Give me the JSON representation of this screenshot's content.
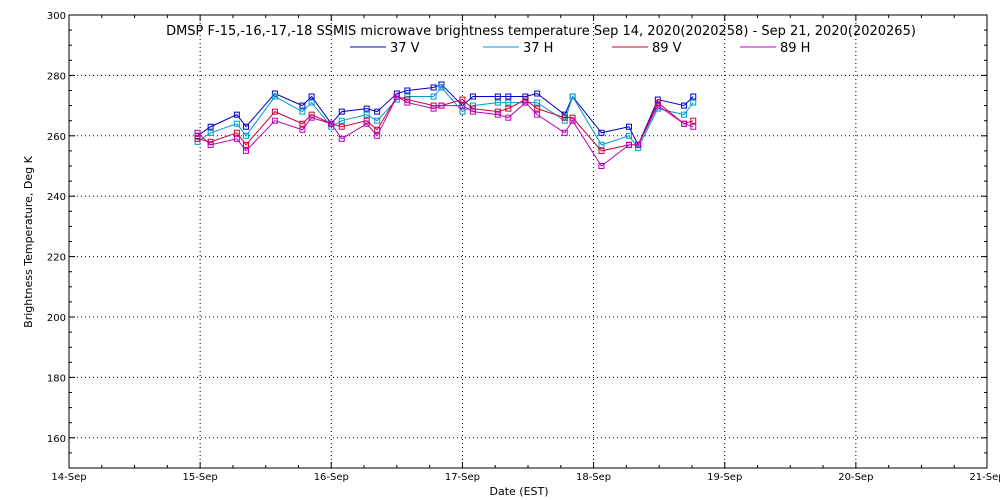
{
  "chart_data": {
    "type": "line",
    "title": "DMSP F-15,-16,-17,-18 SSMIS microwave brightness temperature Sep 14, 2020(2020258) - Sep 21, 2020(2020265)",
    "xlabel": "Date (EST)",
    "ylabel": "Brightness Temperature, Deg K",
    "xlim": [
      0,
      7
    ],
    "ylim": [
      150,
      300
    ],
    "x_ticks": [
      {
        "x": 0,
        "label": "14-Sep"
      },
      {
        "x": 1,
        "label": "15-Sep"
      },
      {
        "x": 2,
        "label": "16-Sep"
      },
      {
        "x": 3,
        "label": "17-Sep"
      },
      {
        "x": 4,
        "label": "18-Sep"
      },
      {
        "x": 5,
        "label": "19-Sep"
      },
      {
        "x": 6,
        "label": "20-Sep"
      },
      {
        "x": 7,
        "label": "21-Sep"
      }
    ],
    "y_ticks": [
      160,
      180,
      200,
      220,
      240,
      260,
      280,
      300
    ],
    "grid": true,
    "legend_position": "top-center",
    "x": [
      0.98,
      1.08,
      1.28,
      1.35,
      1.57,
      1.78,
      1.85,
      2.0,
      2.08,
      2.27,
      2.35,
      2.5,
      2.58,
      2.78,
      2.84,
      3.0,
      3.08,
      3.27,
      3.35,
      3.48,
      3.57,
      3.78,
      3.84,
      4.06,
      4.27,
      4.34,
      4.49,
      4.69,
      4.76
    ],
    "series": [
      {
        "name": "37 V",
        "color": "#0000cc",
        "values": [
          260,
          263,
          267,
          263,
          274,
          270,
          273,
          264,
          268,
          269,
          268,
          274,
          275,
          276,
          277,
          270,
          273,
          273,
          273,
          273,
          274,
          267,
          273,
          261,
          263,
          257,
          272,
          270,
          273
        ]
      },
      {
        "name": "37 H",
        "color": "#0099cc",
        "values": [
          258,
          261,
          264,
          260,
          273,
          268,
          271,
          263,
          265,
          267,
          265,
          272,
          273,
          273,
          276,
          268,
          270,
          271,
          271,
          271,
          271,
          265,
          273,
          257,
          260,
          256,
          269,
          267,
          271
        ]
      },
      {
        "name": "89 V",
        "color": "#cc0033",
        "values": [
          259,
          258,
          261,
          257,
          268,
          264,
          267,
          264,
          263,
          265,
          262,
          273,
          272,
          270,
          270,
          272,
          269,
          268,
          269,
          272,
          269,
          266,
          266,
          255,
          257,
          257,
          271,
          264,
          265
        ]
      },
      {
        "name": "89 H",
        "color": "#bb00bb",
        "values": [
          261,
          257,
          259,
          255,
          265,
          262,
          266,
          264,
          259,
          264,
          260,
          273,
          271,
          269,
          270,
          270,
          268,
          267,
          266,
          271,
          267,
          261,
          265,
          250,
          257,
          257,
          270,
          264,
          263
        ]
      }
    ]
  }
}
